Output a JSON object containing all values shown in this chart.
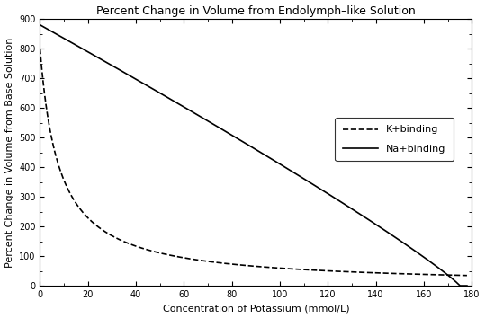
{
  "title": "Percent Change in Volume from Endolymph–like Solution",
  "xlabel": "Concentration of Potassium (mmol/L)",
  "ylabel": "Percent Change in Volume from Base Solution",
  "xlim": [
    0,
    180
  ],
  "ylim": [
    0,
    900
  ],
  "xticks": [
    0,
    20,
    40,
    60,
    80,
    100,
    120,
    140,
    160,
    180
  ],
  "yticks": [
    0,
    100,
    200,
    300,
    400,
    500,
    600,
    700,
    800,
    900
  ],
  "legend_labels": [
    "K+binding",
    "Na+binding"
  ],
  "background_color": "#ffffff",
  "line_color": "#000000",
  "k_A": 880.0,
  "k_C": 175.0,
  "k_n": 1.0,
  "k_x0": 2.5,
  "na_A": 880.0,
  "na_C": 175.0,
  "na_n": 3.5,
  "na_x0": 0.0
}
